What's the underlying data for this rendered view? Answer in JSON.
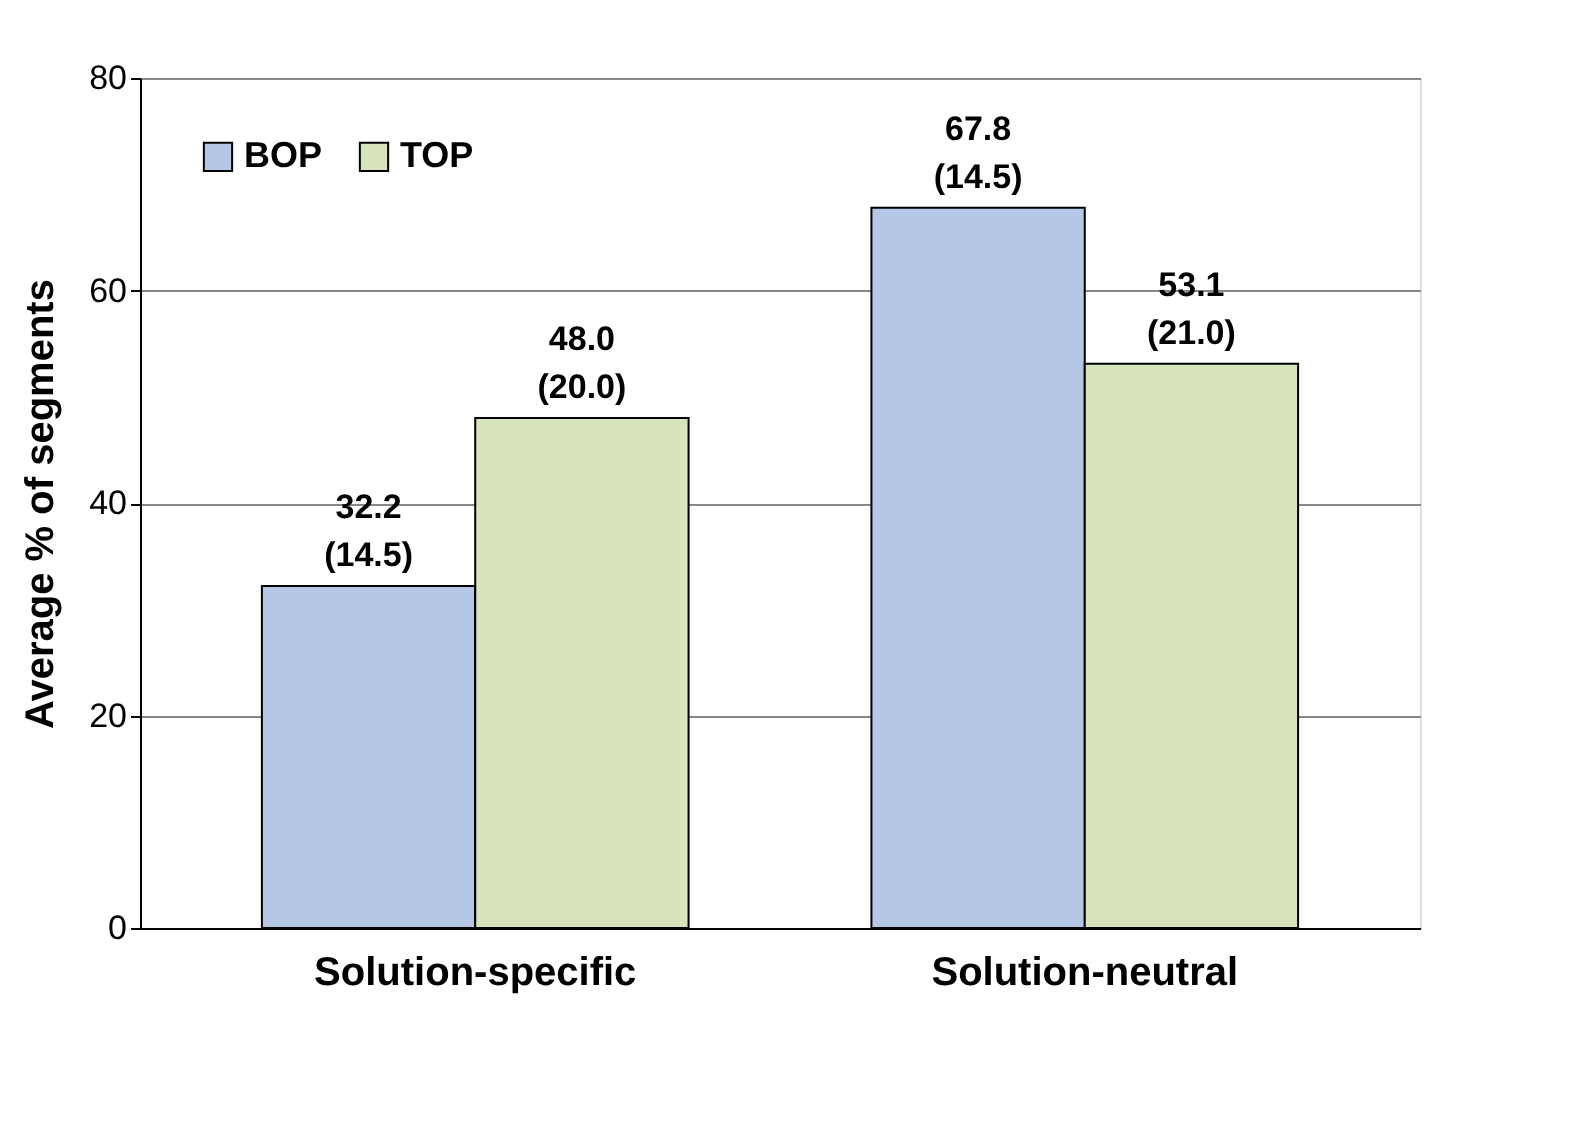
{
  "chart_data": {
    "type": "bar",
    "ylabel": "Average % of segments",
    "categories": [
      "Solution-specific",
      "Solution-neutral"
    ],
    "series": [
      {
        "name": "BOP",
        "color": "#b4c7e7",
        "values": [
          32.2,
          67.8
        ],
        "value_labels": [
          "32.2 (14.5)",
          "67.8 (14.5)"
        ]
      },
      {
        "name": "TOP",
        "color": "#d7e4bd",
        "values": [
          48.0,
          53.1
        ],
        "value_labels": [
          "48.0 (20.0)",
          "53.1 (21.0)"
        ]
      }
    ],
    "ylim": [
      0,
      80
    ],
    "yticks": [
      0,
      20,
      40,
      60,
      80
    ],
    "grid": "y",
    "legend": "top left"
  }
}
